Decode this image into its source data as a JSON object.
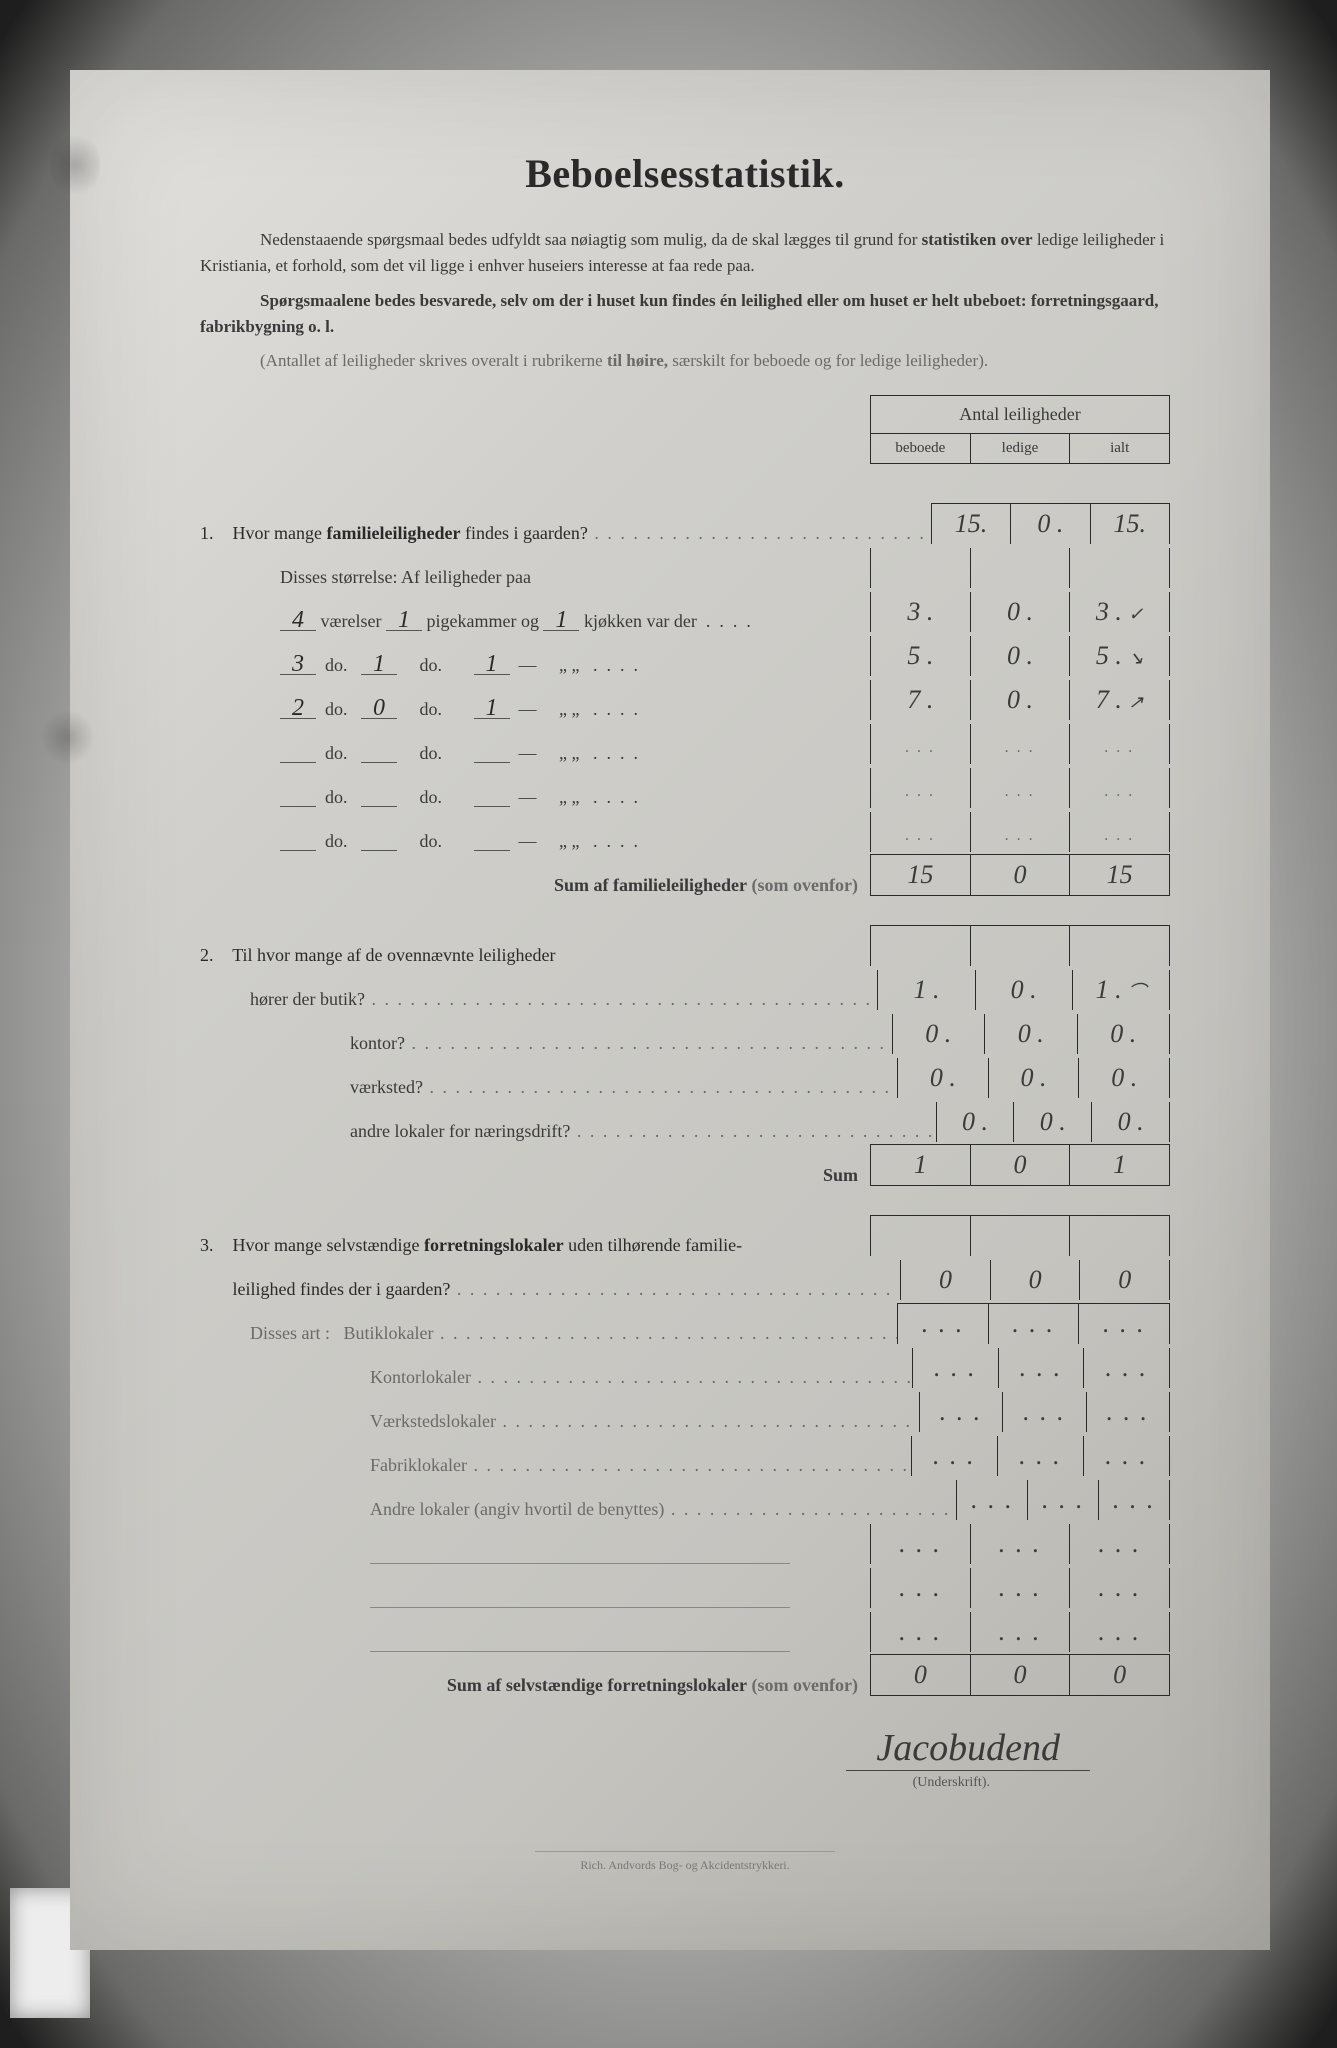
{
  "title": "Beboelsesstatistik.",
  "intro": {
    "p1_a": "Nedenstaaende spørgsmaal bedes udfyldt saa nøiagtig som mulig, da de skal lægges til grund for ",
    "p1_b": "statistiken over",
    "p1_c": " ledige leiligheder i Kristiania, et forhold, som det vil ligge i enhver huseiers interesse at faa rede paa.",
    "p2_a": "Spørgsmaalene bedes besvarede, selv om der i huset kun findes én leilighed eller om huset er helt ubeboet: ",
    "p2_b": "forretningsgaard, fabrikbygning o. l.",
    "p3_a": "(Antallet af leiligheder skrives overalt i rubrikerne ",
    "p3_b": "til høire,",
    "p3_c": " særskilt for beboede og for ledige leiligheder)."
  },
  "header": {
    "title": "Antal leiligheder",
    "c1": "beboede",
    "c2": "ledige",
    "c3": "ialt"
  },
  "q1": {
    "num": "1.",
    "text_a": "Hvor mange ",
    "text_b": "familieleiligheder",
    "text_c": " findes i gaarden?",
    "beboede": "15.",
    "ledige": "0 .",
    "ialt": "15.",
    "sub_intro": "Disses størrelse:   Af leiligheder paa",
    "rows": [
      {
        "v": "4",
        "p": "1",
        "k": "1",
        "b": "3 .",
        "l": "0 .",
        "i": "3 .",
        "mark": "✓"
      },
      {
        "v": "3",
        "p": "1",
        "k": "1",
        "b": "5 .",
        "l": "0 .",
        "i": "5 .",
        "mark": "↘"
      },
      {
        "v": "2",
        "p": "0",
        "k": "1",
        "b": "7 .",
        "l": "0 .",
        "i": "7 .",
        "mark": "↗"
      },
      {
        "v": "",
        "p": "",
        "k": "",
        "b": "",
        "l": "",
        "i": "",
        "mark": ""
      },
      {
        "v": "",
        "p": "",
        "k": "",
        "b": "",
        "l": "",
        "i": "",
        "mark": ""
      },
      {
        "v": "",
        "p": "",
        "k": "",
        "b": "",
        "l": "",
        "i": "",
        "mark": ""
      }
    ],
    "row_template": {
      "t1": "værelser",
      "t2": "pigekammer og",
      "t3": "kjøkken var der",
      "d1": "do.",
      "d2": "do.",
      "dash": "—",
      "quotes": "„   „"
    },
    "sum_label": "Sum af familieleiligheder",
    "sum_note": "(som ovenfor)",
    "sum": {
      "b": "15",
      "l": "0",
      "i": "15"
    }
  },
  "q2": {
    "num": "2.",
    "text": "Til hvor mange af de ovennævnte leiligheder",
    "rows": [
      {
        "label": "hører der butik?",
        "b": "1 .",
        "l": "0 .",
        "i": "1 .",
        "mark": "⌒"
      },
      {
        "label": "kontor?",
        "b": "0 .",
        "l": "0 .",
        "i": "0 ."
      },
      {
        "label": "værksted?",
        "b": "0 .",
        "l": "0 .",
        "i": "0 ."
      },
      {
        "label": "andre lokaler for næringsdrift?",
        "b": "0 .",
        "l": "0 .",
        "i": "0 ."
      }
    ],
    "sum_label": "Sum",
    "sum": {
      "b": "1",
      "l": "0",
      "i": "1"
    }
  },
  "q3": {
    "num": "3.",
    "text_a": "Hvor mange selvstændige ",
    "text_b": "forretningslokaler",
    "text_c": " uden tilhørende familie-",
    "text_d": "leilighed findes der i gaarden?",
    "ans": {
      "b": "0",
      "l": "0",
      "i": "0"
    },
    "art_label": "Disses art :",
    "rows": [
      {
        "label": "Butiklokaler"
      },
      {
        "label": "Kontorlokaler"
      },
      {
        "label": "Værkstedslokaler"
      },
      {
        "label": "Fabriklokaler"
      },
      {
        "label": "Andre lokaler (angiv hvortil de benyttes)"
      }
    ],
    "blank_rows": 3,
    "sum_label": "Sum af selvstændige forretningslokaler",
    "sum_note": "(som ovenfor)",
    "sum": {
      "b": "0",
      "l": "0",
      "i": "0"
    }
  },
  "signature": {
    "hand": "Jacobudend",
    "caption": "(Underskrift)."
  },
  "footer": "Rich. Andvords Bog- og Akcidentstrykkeri.",
  "colors": {
    "ink": "#2a2a2a",
    "paper_light": "#e2e1dd",
    "paper_dark": "#b0afa9",
    "faint": "#6a6a68",
    "border": "#2a2a2a"
  }
}
